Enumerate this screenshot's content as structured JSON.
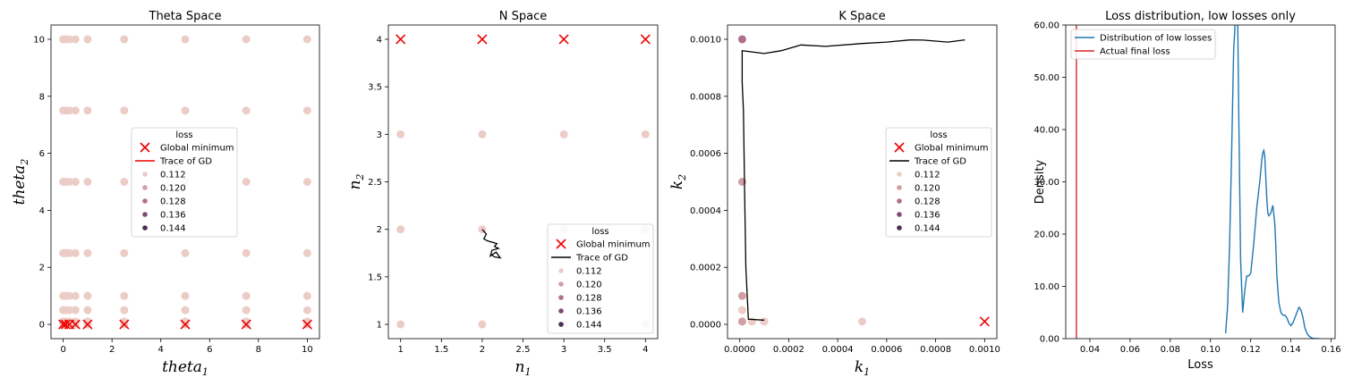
{
  "colors": {
    "hue": [
      "#ecccc6",
      "#d39ea6",
      "#b16f8e",
      "#804b72",
      "#4a2d54"
    ],
    "minimum": "#ee0000",
    "trace": "#000000",
    "kde": "#1f77b4",
    "final_loss": "#d62728"
  },
  "chart_data": [
    {
      "type": "scatter",
      "title": "Theta Space",
      "xlabel": "theta",
      "xlabel_sub": "1",
      "ylabel": "theta",
      "ylabel_sub": "2",
      "xlim": [
        -0.5,
        10.5
      ],
      "ylim": [
        -0.5,
        10.5
      ],
      "xticks": [
        0,
        2,
        4,
        6,
        8,
        10
      ],
      "yticks": [
        0,
        2,
        4,
        6,
        8,
        10
      ],
      "grid_x": [
        0,
        0.1,
        0.25,
        0.5,
        1,
        2.5,
        5,
        7.5,
        10
      ],
      "grid_y": [
        0,
        0.1,
        0.5,
        1,
        2.5,
        5,
        7.5,
        10
      ],
      "global_minimum": [
        [
          0,
          0
        ],
        [
          0.1,
          0
        ],
        [
          0.25,
          0
        ],
        [
          0.5,
          0
        ],
        [
          1,
          0
        ],
        [
          2.5,
          0
        ],
        [
          5,
          0
        ],
        [
          7.5,
          0
        ],
        [
          10,
          0
        ]
      ],
      "trace": [],
      "legend": {
        "title": "loss",
        "position": "center",
        "minimum_label": "Global minimum",
        "trace_label": "Trace of GD",
        "levels": [
          "0.112",
          "0.120",
          "0.128",
          "0.136",
          "0.144"
        ]
      }
    },
    {
      "type": "scatter",
      "title": "N Space",
      "xlabel": "n",
      "xlabel_sub": "1",
      "ylabel": "n",
      "ylabel_sub": "2",
      "xlim": [
        0.85,
        4.15
      ],
      "ylim": [
        0.85,
        4.15
      ],
      "xticks": [
        1.0,
        1.5,
        2.0,
        2.5,
        3.0,
        3.5,
        4.0
      ],
      "yticks": [
        1.0,
        1.5,
        2.0,
        2.5,
        3.0,
        3.5,
        4.0
      ],
      "points": [
        [
          1,
          1
        ],
        [
          2,
          1
        ],
        [
          3,
          1
        ],
        [
          4,
          1
        ],
        [
          1,
          2
        ],
        [
          2,
          2
        ],
        [
          3,
          2
        ],
        [
          4,
          2
        ],
        [
          1,
          3
        ],
        [
          2,
          3
        ],
        [
          3,
          3
        ],
        [
          4,
          3
        ]
      ],
      "global_minimum": [
        [
          1,
          4
        ],
        [
          2,
          4
        ],
        [
          3,
          4
        ],
        [
          4,
          4
        ]
      ],
      "trace": [
        [
          2,
          2
        ],
        [
          2.05,
          1.95
        ],
        [
          2.02,
          1.9
        ],
        [
          2.06,
          1.88
        ],
        [
          2.1,
          1.87
        ],
        [
          2.18,
          1.85
        ],
        [
          2.15,
          1.82
        ],
        [
          2.2,
          1.8
        ],
        [
          2.12,
          1.78
        ],
        [
          2.1,
          1.72
        ],
        [
          2.17,
          1.76
        ],
        [
          2.22,
          1.7
        ],
        [
          2.15,
          1.71
        ],
        [
          2.1,
          1.74
        ]
      ],
      "legend": {
        "title": "loss",
        "position": "lower right",
        "minimum_label": "Global minimum",
        "trace_label": "Trace of GD",
        "levels": [
          "0.112",
          "0.120",
          "0.128",
          "0.136",
          "0.144"
        ]
      }
    },
    {
      "type": "scatter",
      "title": "K Space",
      "xlabel": "k",
      "xlabel_sub": "1",
      "ylabel": "k",
      "ylabel_sub": "2",
      "xlim": [
        -5e-05,
        0.00105
      ],
      "ylim": [
        -5e-05,
        0.00105
      ],
      "xticks": [
        0.0,
        0.0002,
        0.0004,
        0.0006,
        0.0008,
        0.001
      ],
      "yticks": [
        0.0,
        0.0002,
        0.0004,
        0.0006,
        0.0008,
        0.001
      ],
      "tick_decimals": 4,
      "points": [
        {
          "x": 1e-05,
          "y": 0.001,
          "level": 2
        },
        {
          "x": 1e-05,
          "y": 0.0005,
          "level": 1
        },
        {
          "x": 1e-05,
          "y": 0.0001,
          "level": 1
        },
        {
          "x": 1e-05,
          "y": 5e-05,
          "level": 0
        },
        {
          "x": 1e-05,
          "y": 1e-05,
          "level": 1
        },
        {
          "x": 5e-05,
          "y": 1e-05,
          "level": 0
        },
        {
          "x": 0.0001,
          "y": 1e-05,
          "level": 0
        },
        {
          "x": 0.0005,
          "y": 1e-05,
          "level": 0
        }
      ],
      "global_minimum": [
        [
          0.001,
          1e-05
        ]
      ],
      "trace": [
        [
          0.0001,
          1.5e-05
        ],
        [
          3.5e-05,
          1.8e-05
        ],
        [
          2.5e-05,
          0.0002
        ],
        [
          2e-05,
          0.00045
        ],
        [
          1.5e-05,
          0.00075
        ],
        [
          1e-05,
          0.00085
        ],
        [
          1e-05,
          0.00096
        ],
        [
          0.0001,
          0.00095
        ],
        [
          0.00017,
          0.00096
        ],
        [
          0.00025,
          0.00098
        ],
        [
          0.00035,
          0.000975
        ],
        [
          0.0005,
          0.000985
        ],
        [
          0.0006,
          0.00099
        ],
        [
          0.0007,
          0.000998
        ],
        [
          0.00075,
          0.000997
        ],
        [
          0.00085,
          0.00099
        ],
        [
          0.00092,
          0.000998
        ]
      ],
      "legend": {
        "title": "loss",
        "position": "center right",
        "minimum_label": "Global minimum",
        "trace_label": "Trace of GD",
        "levels": [
          "0.112",
          "0.120",
          "0.128",
          "0.136",
          "0.144"
        ]
      }
    },
    {
      "type": "line",
      "title": "Loss distribution, low losses only",
      "xlabel": "Loss",
      "ylabel": "Density",
      "xlim": [
        0.028,
        0.162
      ],
      "ylim": [
        0,
        60
      ],
      "xticks": [
        0.04,
        0.06,
        0.08,
        0.1,
        0.12,
        0.14,
        0.16
      ],
      "yticks": [
        0,
        10,
        20,
        30,
        40,
        50,
        60
      ],
      "tick_decimals": 2,
      "series": [
        {
          "name": "Distribution of low losses",
          "x": [
            0.1075,
            0.1085,
            0.1095,
            0.1105,
            0.1115,
            0.1125,
            0.113,
            0.1135,
            0.114,
            0.1145,
            0.115,
            0.116,
            0.117,
            0.118,
            0.119,
            0.12,
            0.1215,
            0.123,
            0.1245,
            0.1255,
            0.126,
            0.1265,
            0.127,
            0.1275,
            0.128,
            0.1285,
            0.129,
            0.13,
            0.131,
            0.132,
            0.1325,
            0.133,
            0.134,
            0.135,
            0.136,
            0.137,
            0.138,
            0.139,
            0.14,
            0.141,
            0.142,
            0.143,
            0.144,
            0.145,
            0.146,
            0.147,
            0.148,
            0.149,
            0.15,
            0.151,
            0.152,
            0.153,
            0.154
          ],
          "y": [
            1,
            6,
            18,
            35,
            55,
            62,
            70,
            62,
            45,
            30,
            15,
            5,
            9,
            12,
            12,
            12.5,
            18,
            25,
            30,
            34,
            35.5,
            36,
            35,
            31,
            27,
            24,
            23.5,
            24,
            25.5,
            22,
            18,
            12,
            7,
            5,
            4.5,
            4.5,
            4,
            3,
            2.5,
            3,
            4,
            5,
            6,
            5.5,
            4,
            2,
            1,
            0.5,
            0.2,
            0.05,
            0,
            0,
            0
          ]
        },
        {
          "name": "Actual final loss",
          "x": [
            0.0333,
            0.0333
          ],
          "y": [
            0,
            60
          ]
        }
      ],
      "legend": {
        "position": "top-left"
      }
    }
  ]
}
